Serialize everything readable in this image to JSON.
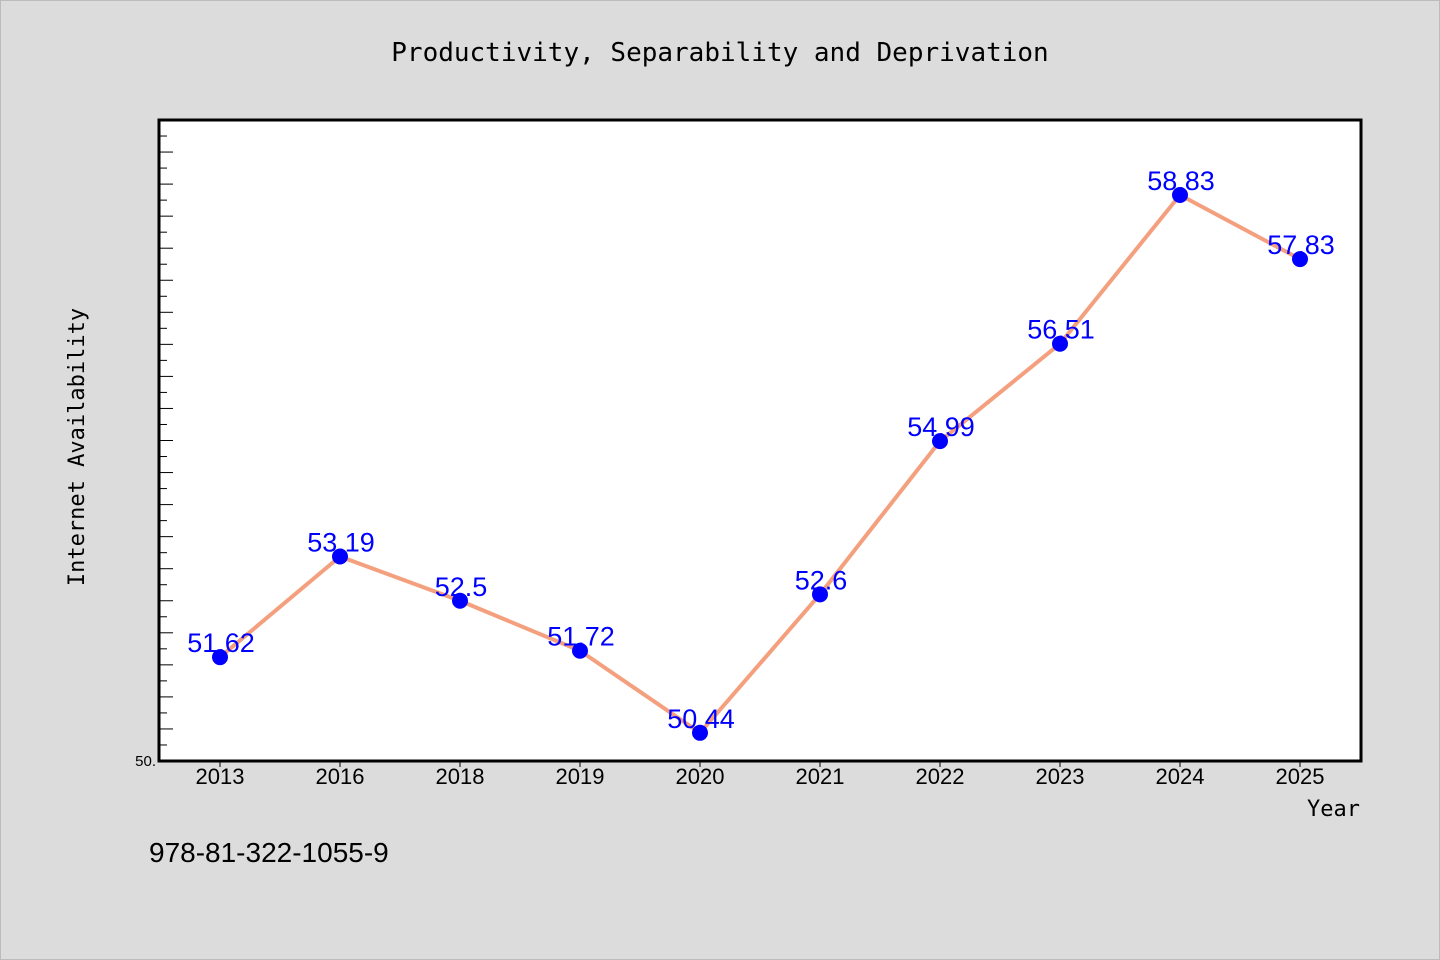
{
  "chart_data": {
    "type": "line",
    "title": "Productivity, Separability and Deprivation",
    "xlabel": "Year",
    "ylabel": "Internet Availability",
    "categories": [
      "2013",
      "2016",
      "2018",
      "2019",
      "2020",
      "2021",
      "2022",
      "2023",
      "2024",
      "2025"
    ],
    "series": [
      {
        "values": [
          51.62,
          53.19,
          52.5,
          51.72,
          50.44,
          52.6,
          54.99,
          56.51,
          58.83,
          57.83
        ]
      }
    ],
    "data_labels": [
      "51.62",
      "53.19",
      "52.5",
      "51.72",
      "50.44",
      "52.6",
      "54.99",
      "56.51",
      "58.83",
      "57.83"
    ],
    "ylim": [
      50,
      60
    ],
    "ytick_labels": [
      "50."
    ],
    "grid": false,
    "line_color": "#f4a07e",
    "marker_color": "#0000ff",
    "label_color": "#0000ff"
  },
  "footer": {
    "isbn": "978-81-322-1055-9"
  }
}
